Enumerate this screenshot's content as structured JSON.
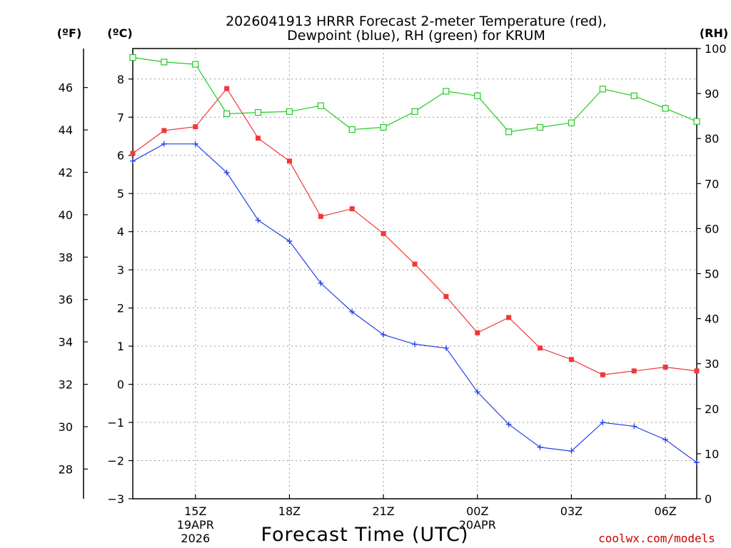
{
  "chart_data": {
    "type": "line",
    "title_lines": [
      "2026041913 HRRR Forecast 2-meter Temperature (red),",
      "Dewpoint (blue), RH (green) for KRUM"
    ],
    "xlabel": "Forecast Time (UTC)",
    "credit": "coolwx.com/models",
    "units": {
      "fahrenheit": "(ºF)",
      "celsius": "(ºC)",
      "rh": "(RH)"
    },
    "x_hours": [
      13,
      14,
      15,
      16,
      17,
      18,
      19,
      20,
      21,
      22,
      23,
      24,
      25,
      26,
      27,
      28,
      29,
      30,
      31
    ],
    "xlim": [
      13,
      31
    ],
    "x_ticks": [
      {
        "hour": 15,
        "label": "15Z"
      },
      {
        "hour": 18,
        "label": "18Z"
      },
      {
        "hour": 21,
        "label": "21Z"
      },
      {
        "hour": 24,
        "label": "00Z"
      },
      {
        "hour": 27,
        "label": "03Z"
      },
      {
        "hour": 30,
        "label": "06Z"
      }
    ],
    "date_labels": [
      {
        "hour": 15,
        "lines": [
          "19APR",
          "2026"
        ]
      },
      {
        "hour": 24,
        "lines": [
          "20APR"
        ]
      }
    ],
    "left_axis_c": {
      "ylim": [
        -3,
        8.8
      ],
      "ticks": [
        -3,
        -2,
        -1,
        0,
        1,
        2,
        3,
        4,
        5,
        6,
        7,
        8
      ],
      "tick_labels": [
        "−3",
        "−2",
        "−1",
        "0",
        "1",
        "2",
        "3",
        "4",
        "5",
        "6",
        "7",
        "8"
      ]
    },
    "left_axis_f": {
      "ticks": [
        28,
        30,
        32,
        34,
        36,
        38,
        40,
        42,
        44,
        46
      ]
    },
    "right_axis_rh": {
      "ylim": [
        0,
        100
      ],
      "ticks": [
        0,
        10,
        20,
        30,
        40,
        50,
        60,
        70,
        80,
        90,
        100
      ]
    },
    "series": [
      {
        "name": "Temperature",
        "axis": "c",
        "color": "#f03838",
        "marker": "filled-square",
        "values": [
          6.05,
          6.65,
          6.75,
          7.75,
          6.45,
          5.85,
          4.4,
          4.6,
          3.95,
          3.15,
          2.3,
          1.35,
          1.75,
          0.95,
          0.65,
          0.25,
          0.35,
          0.45,
          0.35
        ]
      },
      {
        "name": "Dewpoint",
        "axis": "c",
        "color": "#2040ee",
        "marker": "plus",
        "values": [
          5.85,
          6.3,
          6.3,
          5.55,
          4.3,
          3.75,
          2.65,
          1.9,
          1.3,
          1.05,
          0.95,
          -0.2,
          -1.05,
          -1.65,
          -1.75,
          -1.0,
          -1.1,
          -1.45,
          -2.05
        ]
      },
      {
        "name": "RH",
        "axis": "rh",
        "color": "#22cc22",
        "marker": "open-square",
        "values": [
          98,
          97,
          96.5,
          85.5,
          85.8,
          86,
          87.3,
          82,
          82.5,
          86,
          90.5,
          89.5,
          81.5,
          82.5,
          83.5,
          91,
          89.5,
          86.7,
          83.8
        ]
      }
    ]
  }
}
